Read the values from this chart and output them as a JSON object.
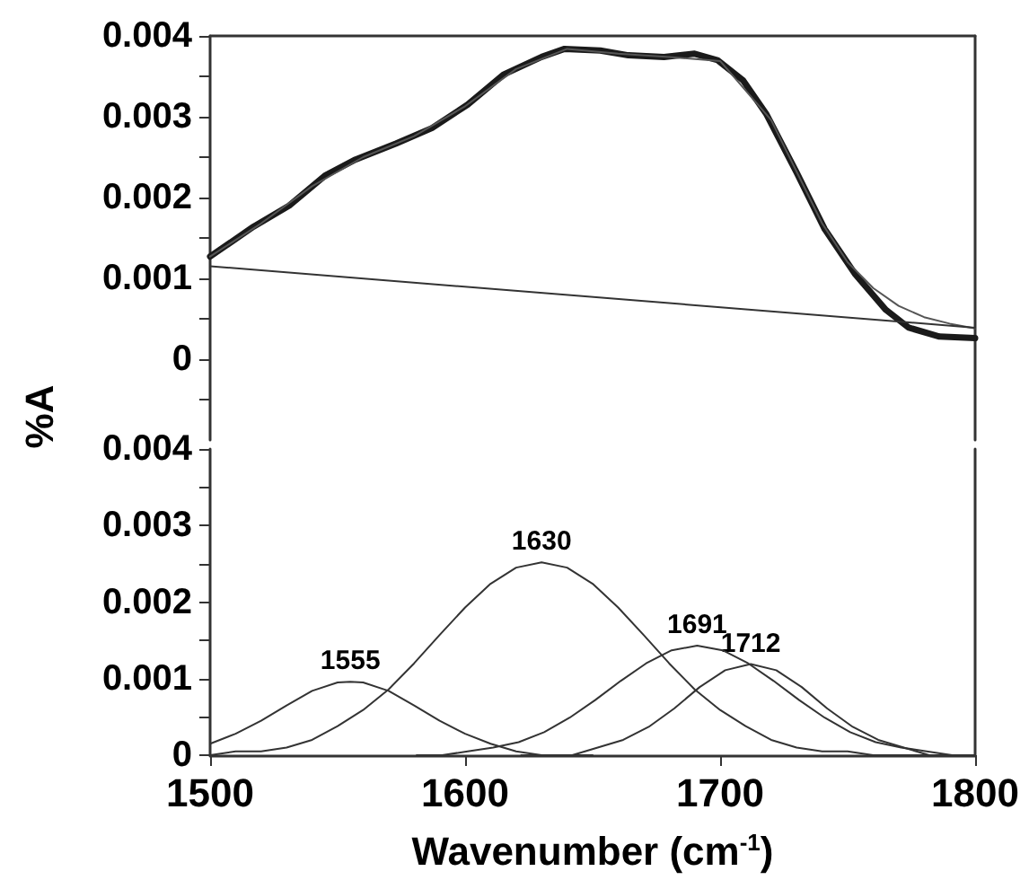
{
  "chart_data": [
    {
      "type": "line",
      "ylabel": "%A",
      "xlim": [
        1500,
        1800
      ],
      "ylim": [
        -0.001,
        0.004
      ],
      "yticks": [
        {
          "value": -0.0005,
          "label": null
        },
        0,
        {
          "value": 0.0005,
          "label": null
        },
        0.001,
        {
          "value": 0.0015,
          "label": null
        },
        0.002,
        {
          "value": 0.0025,
          "label": null
        },
        0.003,
        {
          "value": 0.0035,
          "label": null
        },
        0.004
      ],
      "tick_labels": "y",
      "marker": "none",
      "series": [
        {
          "color": "#1a1a1a",
          "x": [
            1500,
            1517,
            1531,
            1545,
            1557,
            1573,
            1587,
            1601,
            1615,
            1630,
            1639,
            1653,
            1664,
            1678,
            1690,
            1699,
            1709,
            1718,
            1730,
            1741,
            1753,
            1765,
            1774,
            1786,
            1800
          ],
          "values": [
            0.00127,
            0.00164,
            0.0019,
            0.00227,
            0.00247,
            0.00267,
            0.00286,
            0.00315,
            0.00352,
            0.00374,
            0.00384,
            0.00382,
            0.00376,
            0.00374,
            0.00378,
            0.0037,
            0.00345,
            0.00304,
            0.00231,
            0.00161,
            0.00105,
            0.00061,
            0.00039,
            0.00028,
            0.00026
          ]
        },
        {
          "color": "#555555",
          "x": [
            1500,
            1520,
            1540,
            1560,
            1580,
            1600,
            1620,
            1640,
            1660,
            1680,
            1700,
            1720,
            1740,
            1750,
            1760,
            1770,
            1780,
            1790,
            1800
          ],
          "values": [
            0.00127,
            0.00168,
            0.00214,
            0.0025,
            0.00276,
            0.00313,
            0.00359,
            0.00384,
            0.00378,
            0.00374,
            0.00369,
            0.00296,
            0.00168,
            0.0012,
            0.00088,
            0.00066,
            0.00052,
            0.00044,
            0.00038
          ]
        },
        {
          "color": "#333333",
          "x": [
            1500,
            1800
          ],
          "values": [
            0.00115,
            0.00039
          ]
        }
      ]
    },
    {
      "type": "line",
      "xlabel": "Wavenumber (cm$^{-1}$)",
      "xlim": [
        1500,
        1800
      ],
      "xticks": [
        1500,
        1600,
        1700,
        1800
      ],
      "ylim": [
        0,
        0.004
      ],
      "yticks": [
        0,
        {
          "value": 0.0005,
          "label": null
        },
        0.001,
        {
          "value": 0.0015,
          "label": null
        },
        0.002,
        {
          "value": 0.0025,
          "label": null
        },
        0.003,
        {
          "value": 0.0035,
          "label": null
        },
        0.004
      ],
      "marker": "none",
      "series": [
        {
          "color": "#333333",
          "x": [
            1500,
            1510,
            1520,
            1530,
            1540,
            1550,
            1555,
            1560,
            1570,
            1580,
            1590,
            1600,
            1610,
            1620,
            1630,
            1640,
            1650
          ],
          "values": [
            0.00015,
            0.00028,
            0.00045,
            0.00065,
            0.00084,
            0.00095,
            0.00096,
            0.00095,
            0.00084,
            0.00065,
            0.00045,
            0.00028,
            0.00015,
            5e-05,
            0,
            0,
            0
          ]
        },
        {
          "color": "#333333",
          "x": [
            1500,
            1510,
            1520,
            1530,
            1540,
            1550,
            1560,
            1570,
            1580,
            1590,
            1600,
            1610,
            1620,
            1630,
            1640,
            1650,
            1660,
            1670,
            1680,
            1690,
            1700,
            1710,
            1720,
            1730,
            1740,
            1750,
            1760,
            1770,
            1780,
            1790,
            1800
          ],
          "values": [
            0,
            5e-05,
            5e-05,
            0.0001,
            0.0002,
            0.00038,
            0.00059,
            0.00086,
            0.0012,
            0.00157,
            0.00193,
            0.00224,
            0.00245,
            0.00252,
            0.00245,
            0.00224,
            0.00193,
            0.00157,
            0.0012,
            0.00086,
            0.00059,
            0.00038,
            0.0002,
            0.0001,
            5e-05,
            5e-05,
            0,
            0,
            0,
            0,
            0
          ]
        },
        {
          "color": "#333333",
          "x": [
            1581,
            1591,
            1601,
            1611,
            1621,
            1631,
            1641,
            1651,
            1661,
            1671,
            1681,
            1691,
            1701,
            1711,
            1721,
            1731,
            1741,
            1751,
            1761,
            1771,
            1781,
            1791,
            1800
          ],
          "values": [
            0,
            0,
            5e-05,
            0.0001,
            0.00017,
            0.0003,
            0.00049,
            0.00072,
            0.00097,
            0.0012,
            0.00137,
            0.00143,
            0.00137,
            0.0012,
            0.00097,
            0.00072,
            0.00049,
            0.0003,
            0.00017,
            0.0001,
            5e-05,
            0,
            0
          ]
        },
        {
          "color": "#333333",
          "x": [
            1622,
            1632,
            1642,
            1652,
            1662,
            1672,
            1682,
            1692,
            1702,
            1712,
            1722,
            1732,
            1742,
            1752,
            1762,
            1772,
            1782,
            1792,
            1800
          ],
          "values": [
            0,
            0,
            0,
            0.0001,
            0.0002,
            0.00037,
            0.00061,
            0.00089,
            0.00111,
            0.00119,
            0.00111,
            0.00089,
            0.00061,
            0.00037,
            0.0002,
            0.0001,
            0,
            0,
            0
          ]
        }
      ],
      "annotations": [
        {
          "text": "1555",
          "x": 1555,
          "y": 0.00096
        },
        {
          "text": "1630",
          "x": 1630,
          "y": 0.00252
        },
        {
          "text": "1691",
          "x": 1691,
          "y": 0.00143
        },
        {
          "text": "1712",
          "x": 1712,
          "y": 0.00119
        }
      ]
    }
  ]
}
